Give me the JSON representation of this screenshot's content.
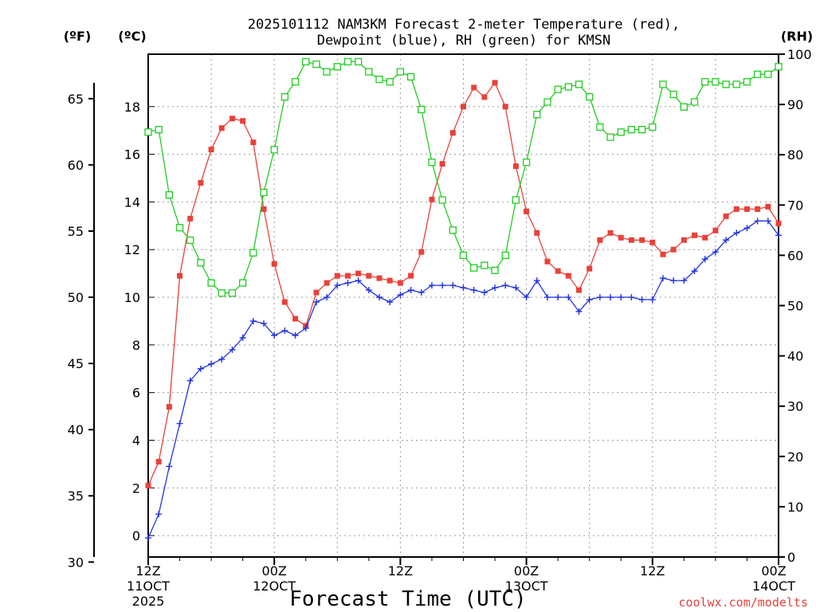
{
  "chart_data": {
    "type": "line",
    "title_line1": "2025101112 NAM3KM Forecast 2-meter Temperature (red),",
    "title_line2": "Dewpoint (blue), RH (green) for KMSN",
    "xlabel": "Forecast Time (UTC)",
    "credit": "coolwx.com/modelts",
    "left_outer_unit": "(ºF)",
    "left_inner_unit": "(ºC)",
    "right_unit": "(RH)",
    "x_range_hours": [
      0,
      60
    ],
    "x_ticks": [
      {
        "h": 0,
        "lines": [
          "12Z",
          "11OCT",
          "2025"
        ]
      },
      {
        "h": 12,
        "lines": [
          "00Z",
          "12OCT"
        ]
      },
      {
        "h": 24,
        "lines": [
          "12Z"
        ]
      },
      {
        "h": 36,
        "lines": [
          "00Z",
          "13OCT"
        ]
      },
      {
        "h": 48,
        "lines": [
          "12Z"
        ]
      },
      {
        "h": 60,
        "lines": [
          "00Z",
          "14OCT"
        ]
      }
    ],
    "celsius_range": [
      -0.9,
      20.2
    ],
    "celsius_ticks": [
      "0",
      "2",
      "4",
      "6",
      "8",
      "10",
      "12",
      "14",
      "16",
      "18"
    ],
    "fahrenheit_ticks": [
      "30",
      "35",
      "40",
      "45",
      "50",
      "55",
      "60",
      "65"
    ],
    "rh_range": [
      0,
      100
    ],
    "rh_ticks": [
      "0",
      "10",
      "20",
      "30",
      "40",
      "50",
      "60",
      "70",
      "80",
      "90",
      "100"
    ],
    "series": [
      {
        "name": "2-meter Temperature (°C)",
        "color": "#e8413a",
        "marker": "filled-square",
        "values": [
          2.1,
          3.1,
          5.4,
          10.9,
          13.3,
          14.8,
          16.2,
          17.1,
          17.5,
          17.4,
          16.5,
          13.7,
          11.4,
          9.8,
          9.1,
          8.8,
          10.2,
          10.6,
          10.9,
          10.9,
          11.0,
          10.9,
          10.8,
          10.7,
          10.6,
          10.9,
          11.9,
          14.1,
          15.6,
          16.9,
          18.0,
          18.8,
          18.4,
          19.0,
          18.0,
          15.5,
          13.6,
          12.7,
          11.5,
          11.1,
          10.9,
          10.3,
          11.2,
          12.4,
          12.7,
          12.5,
          12.4,
          12.4,
          12.3,
          11.8,
          12.0,
          12.4,
          12.6,
          12.5,
          12.8,
          13.4,
          13.7,
          13.7,
          13.7,
          13.8,
          13.1
        ]
      },
      {
        "name": "Dewpoint (°C)",
        "color": "#2233dd",
        "marker": "plus",
        "values": [
          -0.1,
          0.9,
          2.9,
          4.7,
          6.5,
          7.0,
          7.2,
          7.4,
          7.8,
          8.3,
          9.0,
          8.9,
          8.4,
          8.6,
          8.4,
          8.7,
          9.8,
          10.0,
          10.5,
          10.6,
          10.7,
          10.3,
          10.0,
          9.8,
          10.1,
          10.3,
          10.2,
          10.5,
          10.5,
          10.5,
          10.4,
          10.3,
          10.2,
          10.4,
          10.5,
          10.4,
          10.0,
          10.7,
          10.0,
          10.0,
          10.0,
          9.4,
          9.9,
          10.0,
          10.0,
          10.0,
          10.0,
          9.9,
          9.9,
          10.8,
          10.7,
          10.7,
          11.1,
          11.6,
          11.9,
          12.4,
          12.7,
          12.9,
          13.2,
          13.2,
          12.6
        ]
      },
      {
        "name": "RH (%)",
        "color": "#22cc22",
        "marker": "open-square",
        "values": [
          84.5,
          85.0,
          72.0,
          65.5,
          63.0,
          58.5,
          54.5,
          52.5,
          52.5,
          54.5,
          60.5,
          72.5,
          81.0,
          91.5,
          94.5,
          98.5,
          98.0,
          96.5,
          97.5,
          98.5,
          98.5,
          96.5,
          95.0,
          94.5,
          96.5,
          95.5,
          89.0,
          78.5,
          71.0,
          65.0,
          60.0,
          57.5,
          58.0,
          57.0,
          60.0,
          71.0,
          78.5,
          88.0,
          90.5,
          93.0,
          93.5,
          94.0,
          91.5,
          85.5,
          83.5,
          84.5,
          85.0,
          85.0,
          85.5,
          94.0,
          92.0,
          89.5,
          90.5,
          94.5,
          94.5,
          94.0,
          94.0,
          94.5,
          96.0,
          96.0,
          97.5
        ]
      }
    ]
  }
}
